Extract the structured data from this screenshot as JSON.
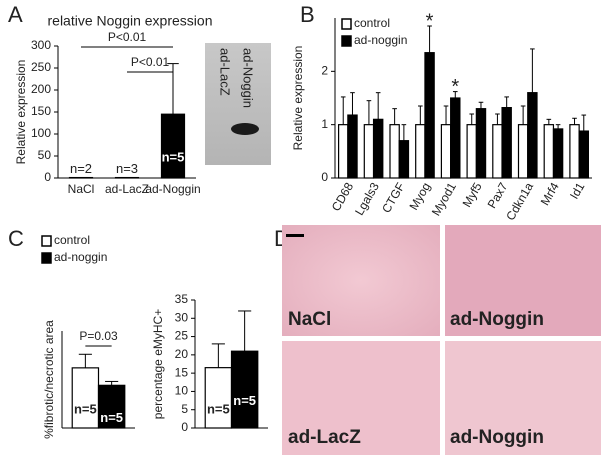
{
  "panel_labels": [
    "A",
    "B",
    "C",
    "D"
  ],
  "gel": {
    "lanes": [
      "ad-LacZ",
      "ad-Noggin"
    ]
  },
  "micrographs": [
    "NaCl",
    "ad-Noggin",
    "ad-LacZ",
    "ad-Noggin"
  ],
  "chart_data": [
    {
      "type": "bar",
      "title": "relative Noggin expression",
      "y_label": "Relative expression",
      "categories": [
        "NaCl",
        "ad-LacZ",
        "ad-Noggin"
      ],
      "values": [
        1,
        1,
        145
      ],
      "errors": [
        0,
        0,
        115
      ],
      "bar_labels": [
        "n=2",
        "n=3",
        "n=5"
      ],
      "color": "#000000",
      "ylim": [
        0,
        300
      ],
      "yticks": [
        0,
        50,
        100,
        150,
        200,
        250,
        300
      ],
      "brackets": [
        {
          "label": "P<0.01",
          "from": 0,
          "to": 2
        },
        {
          "label": "P<0.01",
          "from": 1,
          "to": 2
        }
      ]
    },
    {
      "type": "bar",
      "y_label": "Relative expression",
      "categories": [
        "CD68",
        "Lgals3",
        "CTGF",
        "Myog",
        "Myod1",
        "Myf5",
        "Pax7",
        "Cdkn1a",
        "Mrf4",
        "Id1"
      ],
      "series": [
        {
          "name": "control",
          "color": "#ffffff",
          "values": [
            1,
            1,
            1,
            1,
            1,
            1,
            1,
            1,
            1,
            1
          ],
          "errors": [
            0.52,
            0.45,
            0.3,
            0.35,
            0.35,
            0.2,
            0.2,
            0.35,
            0.1,
            0.12
          ]
        },
        {
          "name": "ad-noggin",
          "color": "#000000",
          "values": [
            1.18,
            1.1,
            0.7,
            2.35,
            1.5,
            1.3,
            1.32,
            1.6,
            0.92,
            0.88
          ],
          "errors": [
            0.42,
            0.5,
            0.3,
            0.5,
            0.12,
            0.12,
            0.2,
            0.82,
            0.08,
            0.3
          ]
        }
      ],
      "ylim": [
        0,
        3
      ],
      "yticks": [
        0,
        1,
        2
      ],
      "legend": "upper left",
      "annotations": [
        {
          "label": "*",
          "category": 3
        },
        {
          "label": "*",
          "category": 4
        }
      ]
    },
    {
      "type": "bar",
      "y_label": "%fibrotic/necrotic area",
      "categories": [
        null
      ],
      "series": [
        {
          "name": "control",
          "color": "#ffffff",
          "values": [
            15.5
          ],
          "errors": [
            3.5
          ],
          "bar_labels": [
            "n=5"
          ]
        },
        {
          "name": "ad-noggin",
          "color": "#000000",
          "values": [
            11
          ],
          "errors": [
            1
          ],
          "bar_labels": [
            "n=5"
          ]
        }
      ],
      "ylim": [
        0,
        25
      ],
      "legend": "upper left",
      "brackets": [
        {
          "label": "P=0.03",
          "from": 0,
          "to": 1
        }
      ]
    },
    {
      "type": "bar",
      "y_label": "percentage eMyHC+",
      "categories": [
        null
      ],
      "series": [
        {
          "name": "control",
          "color": "#ffffff",
          "values": [
            16.5
          ],
          "errors": [
            6.5
          ],
          "bar_labels": [
            "n=5"
          ]
        },
        {
          "name": "ad-noggin",
          "color": "#000000",
          "values": [
            21
          ],
          "errors": [
            11
          ],
          "bar_labels": [
            "n=5"
          ]
        }
      ],
      "ylim": [
        0,
        35
      ],
      "yticks": [
        0,
        5,
        10,
        15,
        20,
        25,
        30,
        35
      ]
    }
  ]
}
